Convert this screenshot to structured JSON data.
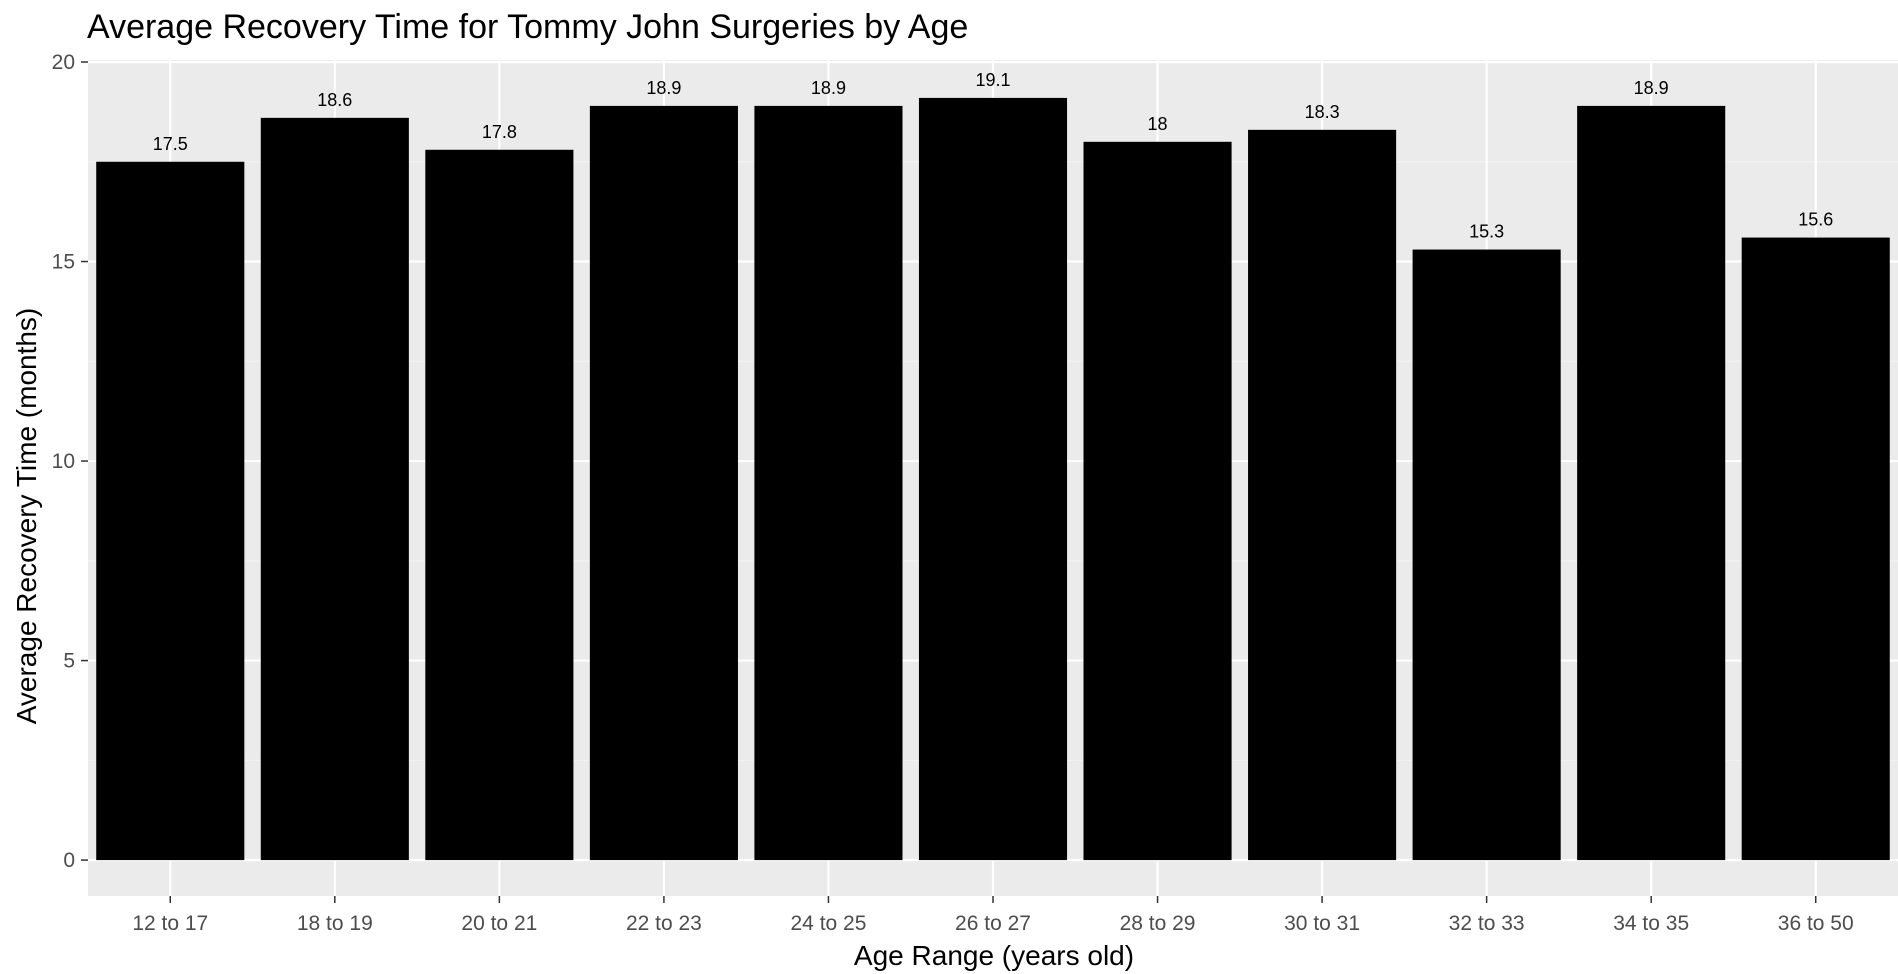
{
  "chart_data": {
    "type": "bar",
    "title": "Average Recovery Time for Tommy John Surgeries by Age",
    "xlabel": "Age Range (years old)",
    "ylabel": "Average Recovery Time (months)",
    "categories": [
      "12 to 17",
      "18 to 19",
      "20 to 21",
      "22 to 23",
      "24 to 25",
      "26 to 27",
      "28 to 29",
      "30 to 31",
      "32 to 33",
      "34 to 35",
      "36 to 50"
    ],
    "values": [
      17.5,
      18.6,
      17.8,
      18.9,
      18.9,
      19.1,
      18,
      18.3,
      15.3,
      18.9,
      15.6
    ],
    "data_labels": [
      "17.5",
      "18.6",
      "17.8",
      "18.9",
      "18.9",
      "19.1",
      "18",
      "18.3",
      "15.3",
      "18.9",
      "15.6"
    ],
    "yticks": [
      0,
      5,
      10,
      15,
      20
    ],
    "ylim": [
      -0.9,
      20.05
    ],
    "grid": true,
    "legend": "none",
    "colors": {
      "bar": "#000000",
      "panel": "#ebebeb",
      "grid_major": "#ffffff",
      "grid_minor": "#f2f2f2",
      "tick_text": "#4d4d4d",
      "tick_mark": "#333333"
    }
  }
}
